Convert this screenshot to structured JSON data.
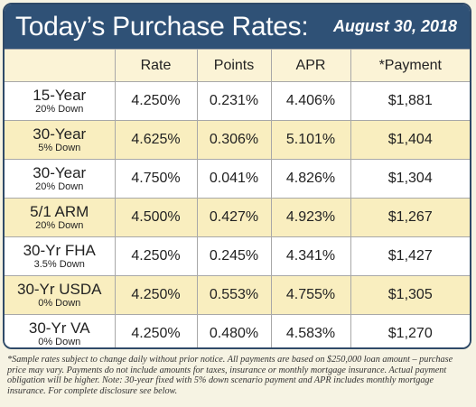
{
  "header": {
    "title": "Today’s Purchase Rates:",
    "date": "August 30, 2018"
  },
  "table": {
    "columns": [
      "",
      "Rate",
      "Points",
      "APR",
      "*Payment"
    ],
    "rows": [
      {
        "loan": "15-Year",
        "down": "20% Down",
        "rate": "4.250%",
        "points": "0.231%",
        "apr": "4.406%",
        "payment": "$1,881"
      },
      {
        "loan": "30-Year",
        "down": "5% Down",
        "rate": "4.625%",
        "points": "0.306%",
        "apr": "5.101%",
        "payment": "$1,404"
      },
      {
        "loan": "30-Year",
        "down": "20% Down",
        "rate": "4.750%",
        "points": "0.041%",
        "apr": "4.826%",
        "payment": "$1,304"
      },
      {
        "loan": "5/1 ARM",
        "down": "20% Down",
        "rate": "4.500%",
        "points": "0.427%",
        "apr": "4.923%",
        "payment": "$1,267"
      },
      {
        "loan": "30-Yr FHA",
        "down": "3.5% Down",
        "rate": "4.250%",
        "points": "0.245%",
        "apr": "4.341%",
        "payment": "$1,427"
      },
      {
        "loan": "30-Yr USDA",
        "down": "0% Down",
        "rate": "4.250%",
        "points": "0.553%",
        "apr": "4.755%",
        "payment": "$1,305"
      },
      {
        "loan": "30-Yr VA",
        "down": "0% Down",
        "rate": "4.250%",
        "points": "0.480%",
        "apr": "4.583%",
        "payment": "$1,270"
      }
    ]
  },
  "footnote": "*Sample rates subject to change daily without prior notice. All payments are based on $250,000 loan amount – purchase price may vary. Payments do not include amounts for taxes, insurance or monthly mortgage insurance. Actual payment obligation will be higher. Note: 30-year fixed with 5% down scenario payment and APR includes monthly mortgage insurance. For complete disclosure see below.",
  "colors": {
    "header_bg": "#2f5176",
    "alt_row_bg": "#f9eebf",
    "page_bg": "#f6f3e3"
  }
}
